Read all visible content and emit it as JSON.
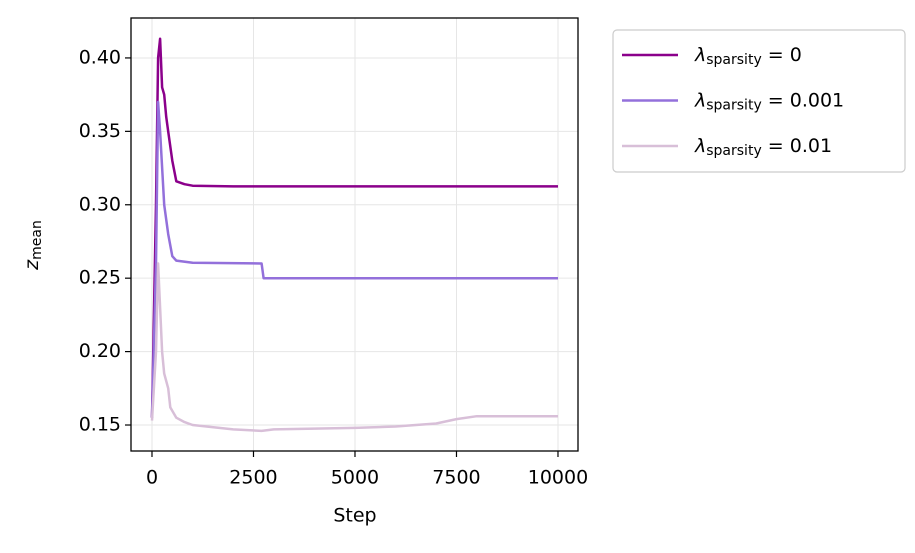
{
  "chart_data": {
    "type": "line",
    "xlabel": "Step",
    "ylabel": "z_{mean}",
    "xlim": [
      -517,
      10493
    ],
    "ylim": [
      0.1323,
      0.4272
    ],
    "xticks": [
      0,
      2500,
      5000,
      7500,
      10000
    ],
    "yticks": [
      0.15,
      {
        "value": 0.2,
        "label": "0.20"
      },
      0.25,
      {
        "value": 0.3,
        "label": "0.30"
      },
      0.35,
      {
        "value": 0.4,
        "label": "0.40"
      }
    ],
    "grid": true,
    "legend": "outside upper right",
    "series": [
      {
        "name": "λ_{sparsity} = 0",
        "color": "#8b008b",
        "x": [
          0,
          100,
          150,
          200,
          250,
          300,
          350,
          400,
          500,
          600,
          800,
          1000,
          2000,
          4000,
          6000,
          10000
        ],
        "values": [
          0.155,
          0.3,
          0.4,
          0.413,
          0.38,
          0.375,
          0.36,
          0.35,
          0.33,
          0.316,
          0.314,
          0.313,
          0.3125,
          0.3125,
          0.3125,
          0.3125
        ]
      },
      {
        "name": "λ_{sparsity} = 0.001",
        "color": "#9370db",
        "x": [
          0,
          100,
          150,
          200,
          300,
          400,
          500,
          600,
          1000,
          2700,
          2750,
          10000
        ],
        "values": [
          0.155,
          0.26,
          0.37,
          0.35,
          0.3,
          0.28,
          0.265,
          0.262,
          0.2605,
          0.26,
          0.25,
          0.25
        ]
      },
      {
        "name": "λ_{sparsity} = 0.01",
        "color": "#d8bfd8",
        "x": [
          0,
          100,
          150,
          200,
          250,
          300,
          400,
          450,
          600,
          800,
          1000,
          2000,
          2700,
          3000,
          5000,
          6000,
          7000,
          7500,
          8000,
          10000
        ],
        "values": [
          0.153,
          0.2,
          0.26,
          0.23,
          0.2,
          0.185,
          0.175,
          0.162,
          0.155,
          0.152,
          0.15,
          0.147,
          0.146,
          0.147,
          0.148,
          0.149,
          0.151,
          0.154,
          0.156,
          0.156
        ]
      }
    ]
  }
}
